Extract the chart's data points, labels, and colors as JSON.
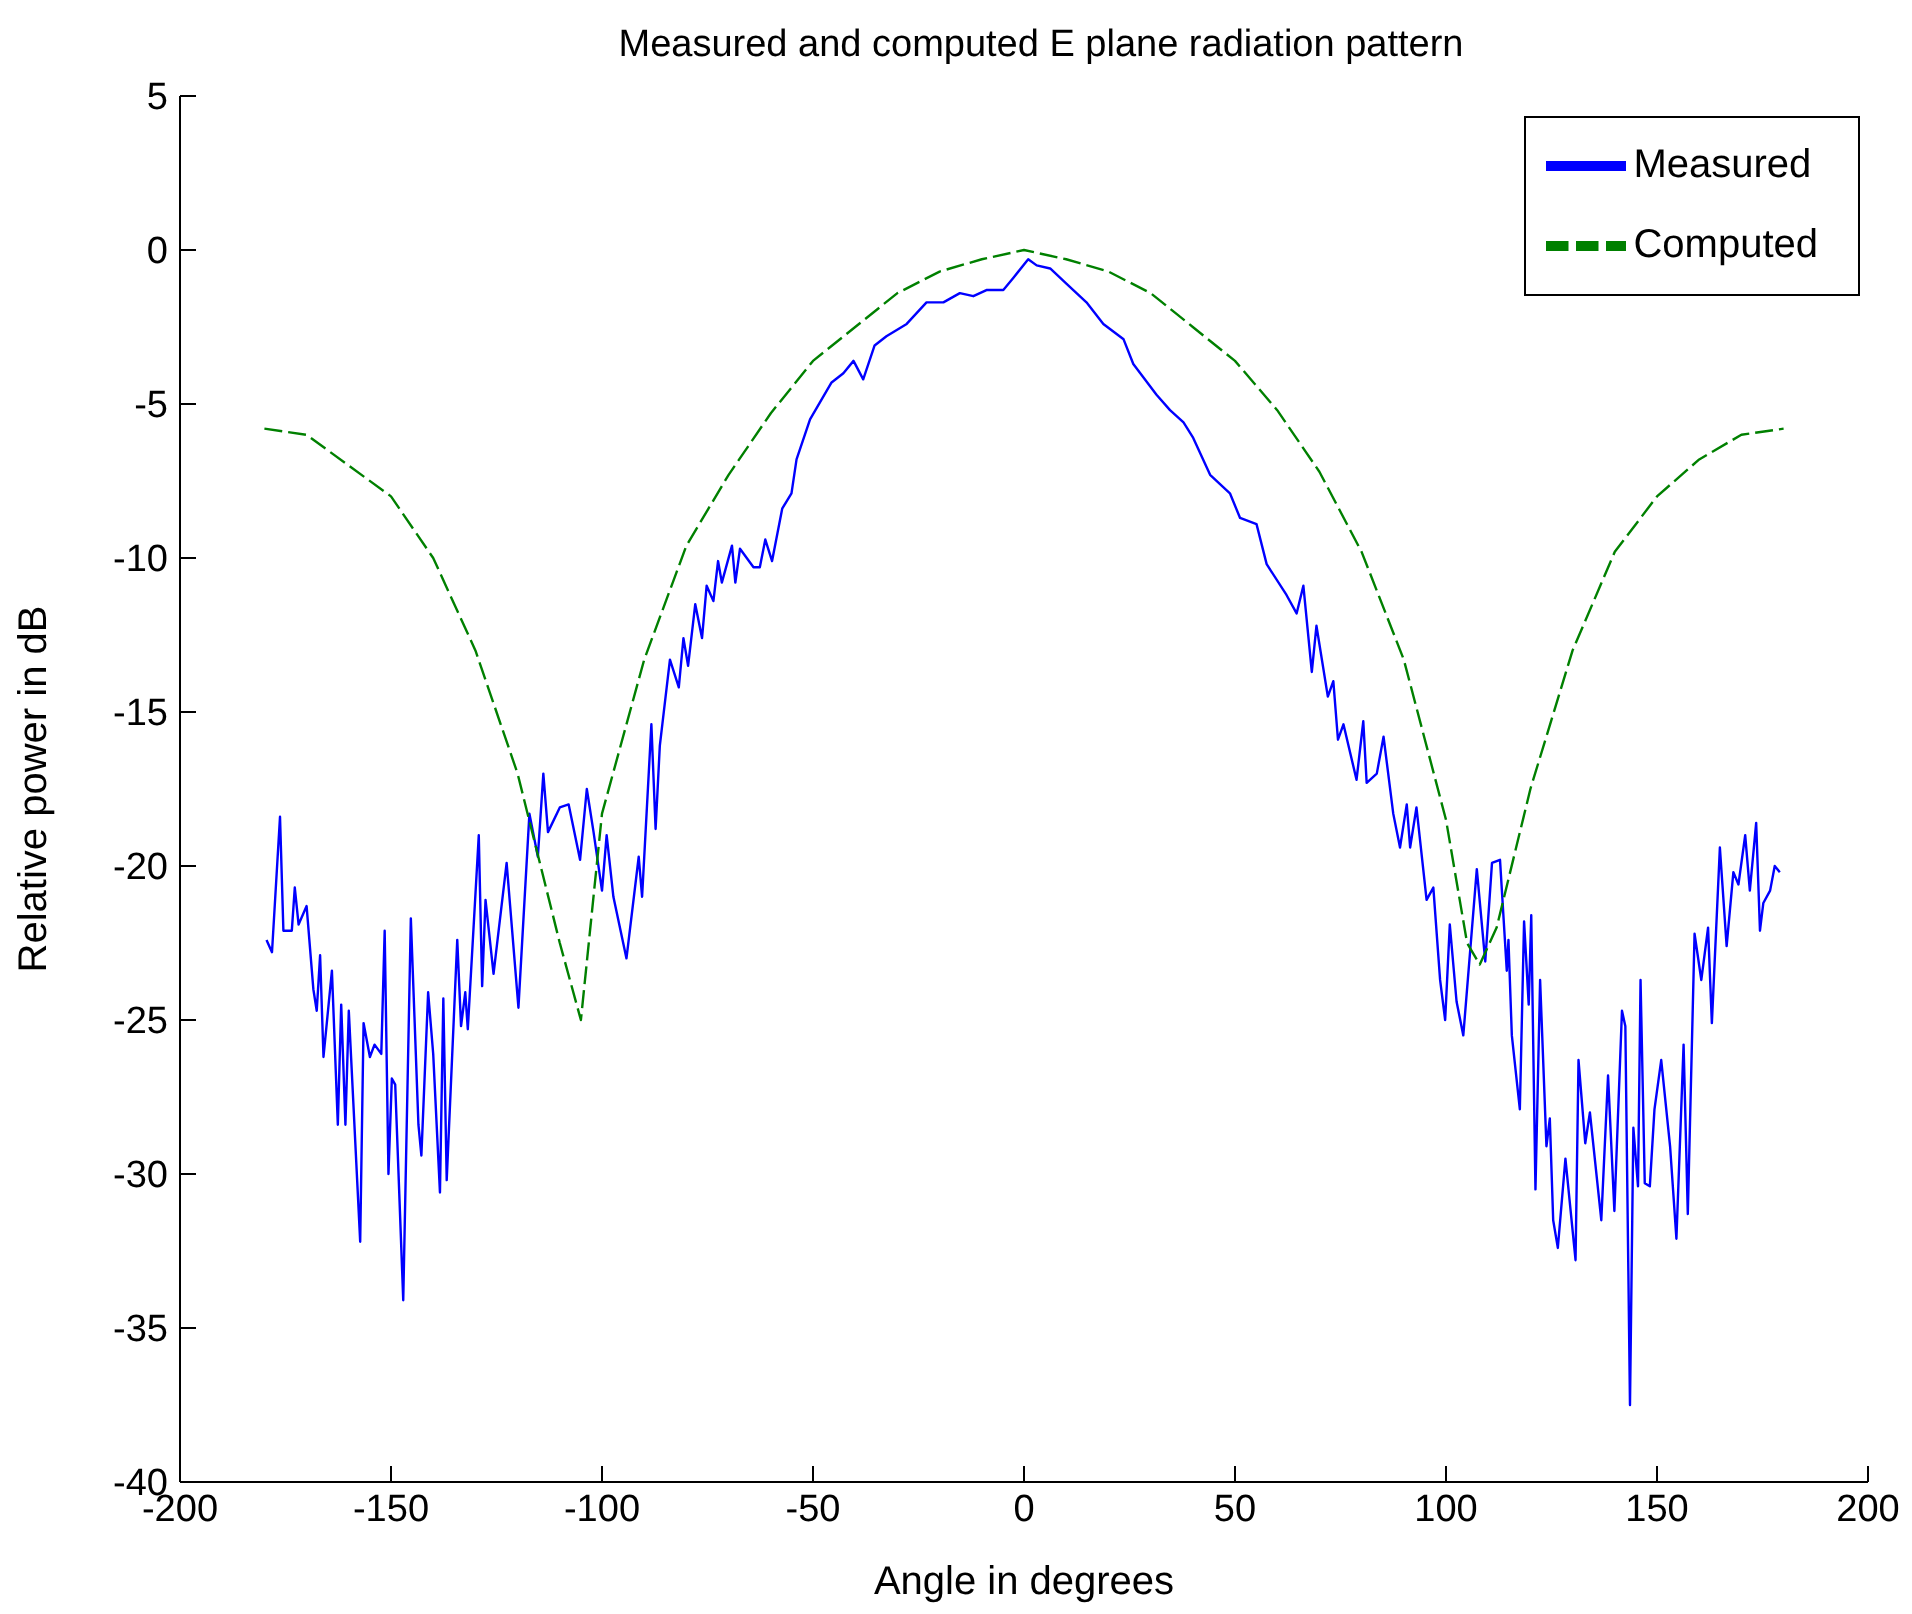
{
  "chart_data": {
    "type": "line",
    "title": "Measured and computed E plane radiation pattern",
    "xlabel": "Angle in degrees",
    "ylabel": "Relative power in dB",
    "xlim": [
      -200,
      200
    ],
    "xticks": [
      -200,
      -150,
      -100,
      -50,
      0,
      50,
      100,
      150,
      200
    ],
    "ylim": [
      -40,
      5
    ],
    "yticks": [
      -40,
      -35,
      -30,
      -25,
      -20,
      -15,
      -10,
      -5,
      0,
      5
    ],
    "grid": false,
    "legend": "top right",
    "series": [
      {
        "name": "Measured",
        "color": "#0000ff",
        "line_style": "solid",
        "x": [
          -179.5,
          -178.2,
          -176.3,
          -175.5,
          -173.5,
          -172.8,
          -171.9,
          -170,
          -168.4,
          -167.6,
          -166.8,
          -166,
          -164,
          -162.6,
          -161.8,
          -160.8,
          -160,
          -157.3,
          -156.5,
          -155,
          -153.9,
          -152.3,
          -151.5,
          -150.6,
          -149.8,
          -149,
          -147.1,
          -145.3,
          -143.5,
          -142.8,
          -141.2,
          -140,
          -138.4,
          -137.6,
          -136.8,
          -134.3,
          -133.4,
          -132.4,
          -131.8,
          -129.2,
          -128.4,
          -127.6,
          -125.7,
          -122.6,
          -119.8,
          -117.2,
          -115.2,
          -113.9,
          -112.8,
          -110,
          -107.9,
          -105.2,
          -103.6,
          -102,
          -100,
          -98.9,
          -97.3,
          -94.2,
          -91.3,
          -90.5,
          -88.3,
          -87.3,
          -86.3,
          -83.9,
          -81.8,
          -80.7,
          -79.6,
          -77.9,
          -76.3,
          -75.2,
          -73.6,
          -72.5,
          -71.6,
          -69.2,
          -68.4,
          -67.3,
          -64.1,
          -62.6,
          -61.3,
          -59.7,
          -57.3,
          -55.1,
          -53.9,
          -50.7,
          -45.6,
          -42.8,
          -40.4,
          -38.1,
          -35.4,
          -32.6,
          -27.8,
          -23.1,
          -19.1,
          -15.2,
          -12,
          -8.9,
          -4.9,
          -2.5,
          1,
          3,
          6.2,
          10.1,
          14.8,
          18.8,
          23.6,
          25.9,
          31.4,
          34.6,
          37.8,
          40.1,
          44.1,
          48.8,
          51.2,
          55.1,
          57.5,
          62.2,
          64.6,
          66.2,
          68.2,
          69.3,
          72,
          73.3,
          74.4,
          75.7,
          78.8,
          80.4,
          81.2,
          83.6,
          85.2,
          87.5,
          89.1,
          90.7,
          91.5,
          93,
          95.4,
          97,
          98.6,
          99.8,
          100.9,
          102.5,
          104.1,
          107.3,
          109.3,
          110.9,
          112.8,
          114.4,
          114.8,
          115.6,
          117.5,
          118.5,
          119.6,
          120.2,
          121.2,
          122.3,
          123.8,
          124.6,
          125.4,
          126.5,
          128.3,
          130.7,
          131.4,
          133,
          134.1,
          136.8,
          138.4,
          139.9,
          141.7,
          142.5,
          143.6,
          144.4,
          145.5,
          146.1,
          147.1,
          148.3,
          149.4,
          151,
          153.1,
          154.6,
          156.3,
          157.3,
          158.9,
          160.5,
          162.1,
          163,
          164.9,
          166.5,
          168.1,
          169.3,
          170.9,
          172,
          173.5,
          174.4,
          175.2,
          176.8,
          177.9,
          179.1
        ],
        "values": [
          -22.4,
          -22.8,
          -18.4,
          -22.1,
          -22.1,
          -20.7,
          -21.9,
          -21.3,
          -24,
          -24.7,
          -22.9,
          -26.2,
          -23.4,
          -28.4,
          -24.5,
          -28.4,
          -24.7,
          -32.2,
          -25.1,
          -26.2,
          -25.8,
          -26.1,
          -22.1,
          -30,
          -26.9,
          -27.1,
          -34.1,
          -21.7,
          -28.4,
          -29.4,
          -24.1,
          -26.1,
          -30.6,
          -24.3,
          -30.2,
          -22.4,
          -25.2,
          -24.1,
          -25.3,
          -19,
          -23.9,
          -21.1,
          -23.5,
          -19.9,
          -24.6,
          -18.3,
          -19.7,
          -17,
          -18.9,
          -18.1,
          -18,
          -19.8,
          -17.5,
          -18.9,
          -20.8,
          -19,
          -21,
          -23,
          -19.7,
          -21,
          -15.4,
          -18.8,
          -16.1,
          -13.3,
          -14.2,
          -12.6,
          -13.5,
          -11.5,
          -12.6,
          -10.9,
          -11.4,
          -10.1,
          -10.8,
          -9.6,
          -10.8,
          -9.7,
          -10.3,
          -10.3,
          -9.4,
          -10.1,
          -8.4,
          -7.9,
          -6.8,
          -5.5,
          -4.3,
          -4,
          -3.6,
          -4.2,
          -3.1,
          -2.8,
          -2.4,
          -1.7,
          -1.7,
          -1.4,
          -1.5,
          -1.3,
          -1.3,
          -0.9,
          -0.3,
          -0.5,
          -0.6,
          -1.1,
          -1.7,
          -2.4,
          -2.9,
          -3.7,
          -4.7,
          -5.2,
          -5.6,
          -6.1,
          -7.3,
          -7.9,
          -8.7,
          -8.9,
          -10.2,
          -11.2,
          -11.8,
          -10.9,
          -13.7,
          -12.2,
          -14.5,
          -14,
          -15.9,
          -15.4,
          -17.2,
          -15.3,
          -17.3,
          -17,
          -15.8,
          -18.3,
          -19.4,
          -18,
          -19.4,
          -18.1,
          -21.1,
          -20.7,
          -23.7,
          -25,
          -21.9,
          -24.4,
          -25.5,
          -20.1,
          -23.1,
          -19.9,
          -19.8,
          -23.4,
          -22.4,
          -25.5,
          -27.9,
          -21.8,
          -24.5,
          -21.6,
          -30.5,
          -23.7,
          -29.1,
          -28.2,
          -31.5,
          -32.4,
          -29.5,
          -32.8,
          -26.3,
          -29,
          -28,
          -31.5,
          -26.8,
          -31.2,
          -24.7,
          -25.2,
          -37.5,
          -28.5,
          -30.4,
          -23.7,
          -30.3,
          -30.4,
          -27.9,
          -26.3,
          -29.1,
          -32.1,
          -25.8,
          -31.3,
          -22.2,
          -23.7,
          -22,
          -25.1,
          -19.4,
          -22.6,
          -20.2,
          -20.6,
          -19,
          -20.8,
          -18.6,
          -22.1,
          -21.2,
          -20.8,
          -20,
          -20.2
        ]
      },
      {
        "name": "Computed",
        "color": "#008000",
        "line_style": "dashed",
        "x": [
          -180,
          -170,
          -160,
          -150,
          -140,
          -130,
          -120,
          -110,
          -105,
          -100,
          -90,
          -80,
          -70,
          -60,
          -50,
          -40,
          -30,
          -20,
          -10,
          0,
          10,
          20,
          30,
          40,
          50,
          60,
          70,
          80,
          90,
          100,
          105,
          108,
          112,
          120,
          130,
          140,
          150,
          160,
          170,
          180
        ],
        "values": [
          -5.8,
          -6,
          -7,
          -8,
          -10,
          -13,
          -17,
          -22.5,
          -25,
          -18.3,
          -13.3,
          -9.6,
          -7.3,
          -5.3,
          -3.6,
          -2.5,
          -1.4,
          -0.7,
          -0.3,
          0,
          -0.3,
          -0.7,
          -1.4,
          -2.5,
          -3.6,
          -5.2,
          -7.2,
          -9.8,
          -13.3,
          -18.5,
          -22.5,
          -23.2,
          -22,
          -17.5,
          -13,
          -9.8,
          -8,
          -6.8,
          -6,
          -5.8
        ]
      }
    ]
  }
}
